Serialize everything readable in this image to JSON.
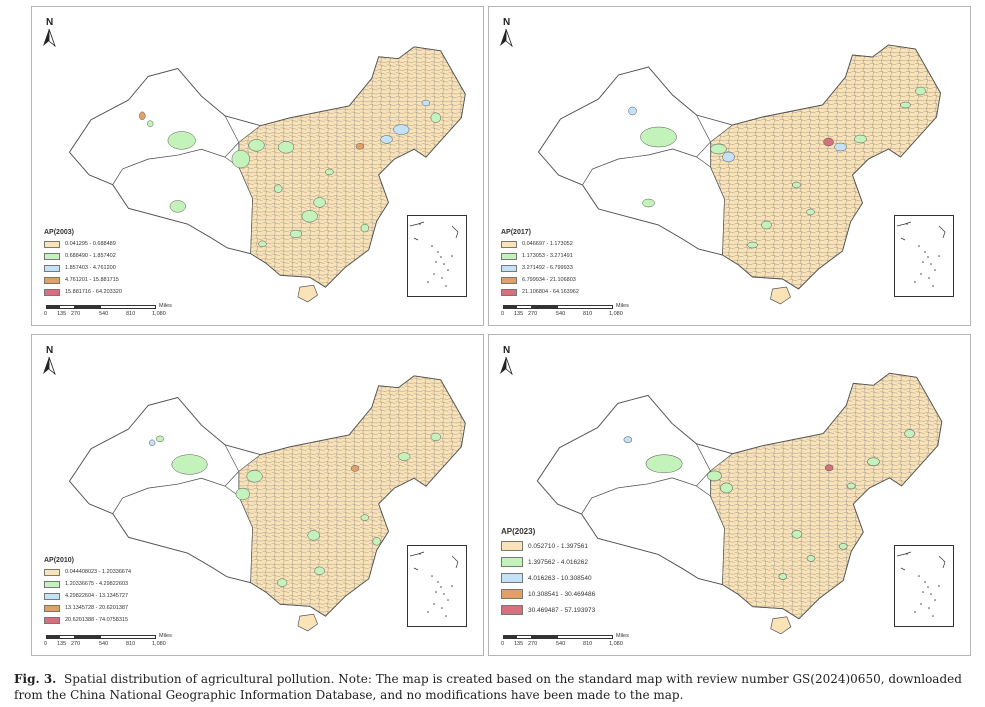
{
  "figure": {
    "label": "Fig. 3.",
    "caption": "Spatial distribution of agricultural pollution. Note: The map is created based on the standard map with review number GS(2024)0650, downloaded from the China National Geographic Information Database, and no modifications have been made to the map."
  },
  "colors": {
    "class1": "#fbe3b8",
    "class2": "#c3f2ba",
    "class3": "#c4e2f7",
    "class4": "#e3a066",
    "class5": "#d2727c",
    "unfilled": "#ffffff",
    "outline": "#555555"
  },
  "north_label": "N",
  "scale": {
    "ticks": [
      "0",
      "135",
      "270",
      "540",
      "810",
      "1,080"
    ],
    "unit": "Miles"
  },
  "panels": [
    {
      "year": "2003",
      "legend_title": "AP(2003)",
      "classes": [
        "0.041295 - 0.688489",
        "0.688490 - 1.857402",
        "1.857403 - 4.761200",
        "4.761201 - 15.881715",
        "15.881716 - 64.203320"
      ]
    },
    {
      "year": "2017",
      "legend_title": "AP(2017)",
      "classes": [
        "0.046697 - 1.173052",
        "1.173053 - 3.271491",
        "3.271492 - 6.799933",
        "6.799934 - 21.106803",
        "21.106804 - 64.163962"
      ]
    },
    {
      "year": "2010",
      "legend_title": "AP(2010)",
      "classes": [
        "0.044408023 - 1.20336674",
        "1.20336675 - 4.29822603",
        "4.29822604 - 13.1345727",
        "13.1345728 - 20.6201387",
        "20.6201388 - 74.0758315"
      ]
    },
    {
      "year": "2023",
      "legend_title": "AP(2023)",
      "classes": [
        "0.052710 - 1.397561",
        "1.397562 - 4.016262",
        "4.016263 - 10.308540",
        "10.308541 - 30.469486",
        "30.469487 - 57.193973"
      ]
    }
  ]
}
